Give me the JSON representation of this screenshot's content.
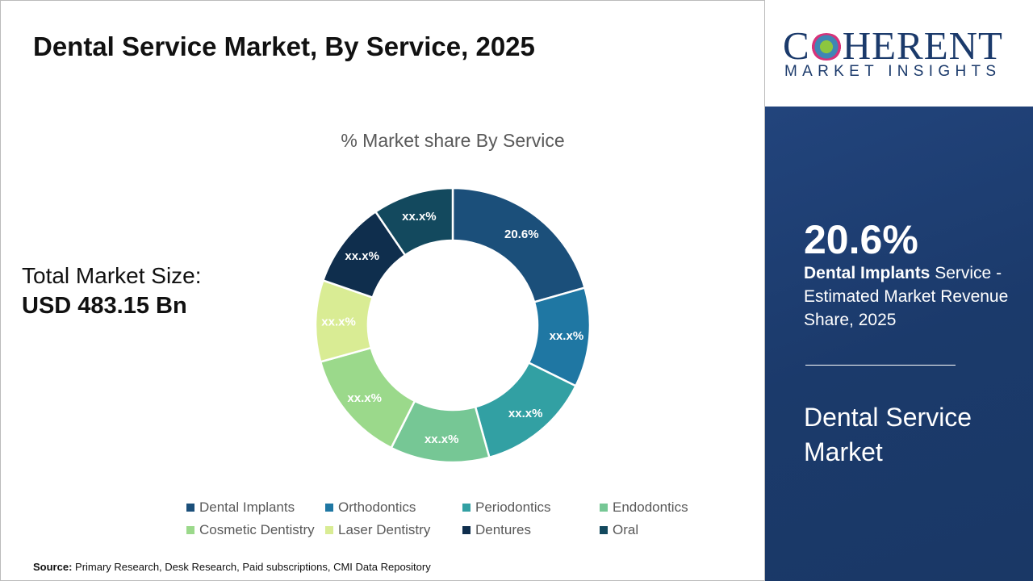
{
  "title": "Dental Service Market, By Service, 2025",
  "total_market": {
    "label": "Total Market Size:",
    "value": "USD 483.15 Bn"
  },
  "source": {
    "label": "Source:",
    "text": " Primary Research, Desk Research, Paid subscriptions, CMI Data Repository"
  },
  "logo": {
    "line1": "COHERENT",
    "line2": "MARKET INSIGHTS"
  },
  "highlight": {
    "value": "20.6%",
    "bold": "Dental Implants",
    "rest": " Service - Estimated Market Revenue Share, 2025",
    "market": "Dental Service Market"
  },
  "colors": {
    "panel": "#1b3a6b"
  },
  "chart_data": {
    "type": "pie",
    "donut": true,
    "title": "% Market share By Service",
    "categories": [
      "Dental Implants",
      "Orthodontics",
      "Periodontics",
      "Endodontics",
      "Cosmetic Dentistry",
      "Laser Dentistry",
      "Dentures",
      "Oral"
    ],
    "values": [
      20.6,
      11.7,
      13.4,
      11.7,
      13.3,
      9.6,
      10.2,
      9.5
    ],
    "labels": [
      "20.6%",
      "xx.x%",
      "xx.x%",
      "xx.x%",
      "xx.x%",
      "xx.x%",
      "xx.x%",
      "xx.x%"
    ],
    "colors": [
      "#1b4f7a",
      "#1f77a3",
      "#32a0a3",
      "#76c795",
      "#9bd98b",
      "#d9ec94",
      "#0f2e4d",
      "#13495e"
    ],
    "legend_position": "bottom"
  }
}
